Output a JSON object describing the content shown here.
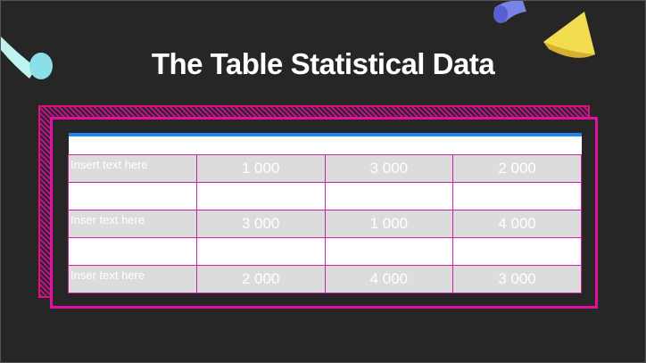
{
  "title": "The Table Statistical Data",
  "colors": {
    "background": "#262626",
    "accent": "#e010a0",
    "header": "#1a88f0",
    "row": "#dcdcdc"
  },
  "table": {
    "rows": [
      {
        "label": "Insert text here",
        "values": [
          "1 000",
          "3 000",
          "2 000"
        ]
      },
      {
        "label": "",
        "values": [
          "",
          "",
          ""
        ]
      },
      {
        "label": "Inser text here",
        "values": [
          "3 000",
          "1 000",
          "4 000"
        ]
      },
      {
        "label": "",
        "values": [
          "",
          "",
          ""
        ]
      },
      {
        "label": "Inser text here",
        "values": [
          "2 000",
          "4 000",
          "3 000"
        ]
      }
    ]
  }
}
